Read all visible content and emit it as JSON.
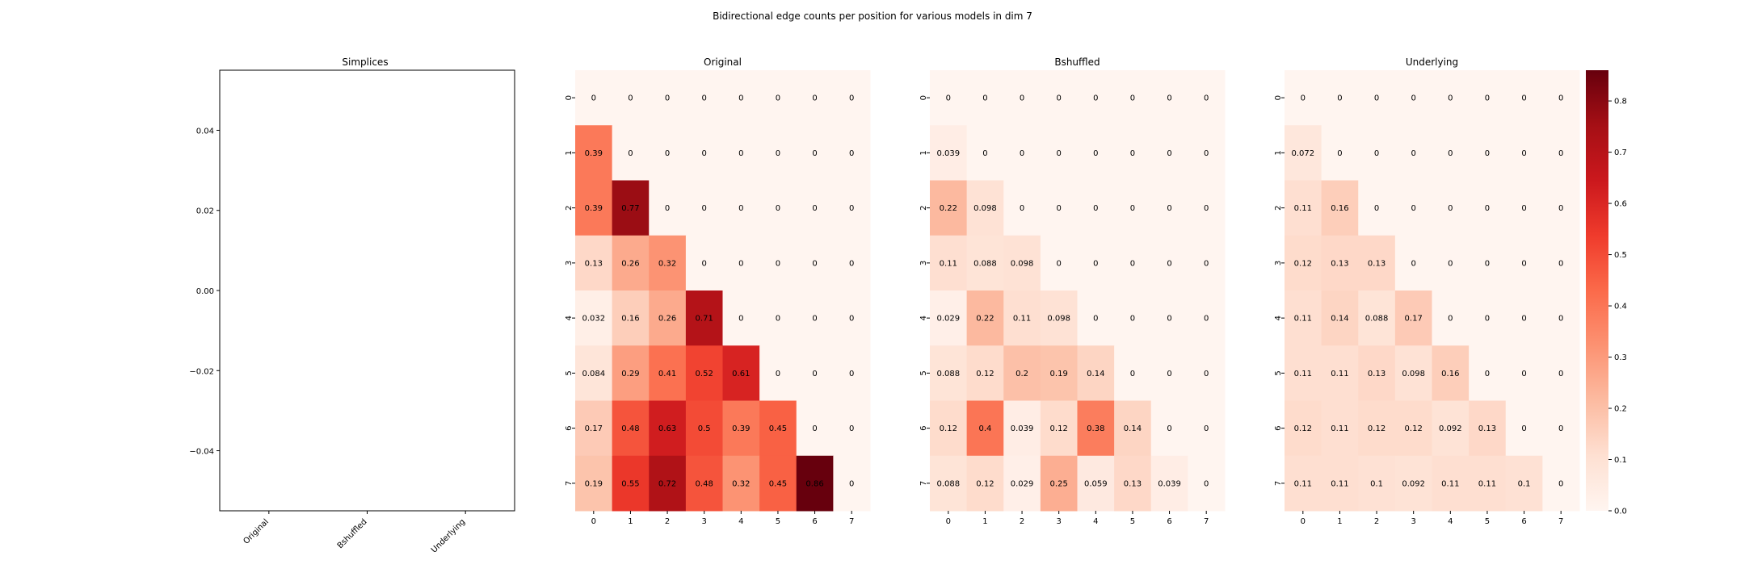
{
  "figure": {
    "suptitle": "Bidirectional edge counts per position for various models in dim 7"
  },
  "colors": {
    "cmap": [
      "#fff5f0",
      "#fee0d2",
      "#fcbba1",
      "#fc9272",
      "#fb6a4a",
      "#ef3b2c",
      "#cb181d",
      "#a50f15",
      "#67000d"
    ]
  },
  "chart_data": [
    {
      "type": "bar",
      "title": "Simplices",
      "categories": [
        "Original",
        "Bshuffled",
        "Underlying"
      ],
      "values": [
        0,
        0,
        0
      ],
      "ylim": [
        -0.055,
        0.055
      ],
      "yticks": [
        "0.04",
        "0.02",
        "0.00",
        "−0.02",
        "−0.04"
      ]
    },
    {
      "type": "heatmap",
      "title": "Original",
      "x": [
        "0",
        "1",
        "2",
        "3",
        "4",
        "5",
        "6",
        "7"
      ],
      "y": [
        "0",
        "1",
        "2",
        "3",
        "4",
        "5",
        "6",
        "7"
      ],
      "values": [
        [
          0,
          0,
          0,
          0,
          0,
          0,
          0,
          0
        ],
        [
          0.39,
          0,
          0,
          0,
          0,
          0,
          0,
          0
        ],
        [
          0.39,
          0.77,
          0,
          0,
          0,
          0,
          0,
          0
        ],
        [
          0.13,
          0.26,
          0.32,
          0,
          0,
          0,
          0,
          0
        ],
        [
          0.032,
          0.16,
          0.26,
          0.71,
          0,
          0,
          0,
          0
        ],
        [
          0.084,
          0.29,
          0.41,
          0.52,
          0.61,
          0,
          0,
          0
        ],
        [
          0.17,
          0.48,
          0.63,
          0.5,
          0.39,
          0.45,
          0,
          0
        ],
        [
          0.19,
          0.55,
          0.72,
          0.48,
          0.32,
          0.45,
          0.86,
          0
        ]
      ]
    },
    {
      "type": "heatmap",
      "title": "Bshuffled",
      "x": [
        "0",
        "1",
        "2",
        "3",
        "4",
        "5",
        "6",
        "7"
      ],
      "y": [
        "0",
        "1",
        "2",
        "3",
        "4",
        "5",
        "6",
        "7"
      ],
      "values": [
        [
          0,
          0,
          0,
          0,
          0,
          0,
          0,
          0
        ],
        [
          0.039,
          0,
          0,
          0,
          0,
          0,
          0,
          0
        ],
        [
          0.22,
          0.098,
          0,
          0,
          0,
          0,
          0,
          0
        ],
        [
          0.11,
          0.088,
          0.098,
          0,
          0,
          0,
          0,
          0
        ],
        [
          0.029,
          0.22,
          0.11,
          0.098,
          0,
          0,
          0,
          0
        ],
        [
          0.088,
          0.12,
          0.2,
          0.19,
          0.14,
          0,
          0,
          0
        ],
        [
          0.12,
          0.4,
          0.039,
          0.12,
          0.38,
          0.14,
          0,
          0
        ],
        [
          0.088,
          0.12,
          0.029,
          0.25,
          0.059,
          0.13,
          0.039,
          0
        ]
      ]
    },
    {
      "type": "heatmap",
      "title": "Underlying",
      "x": [
        "0",
        "1",
        "2",
        "3",
        "4",
        "5",
        "6",
        "7"
      ],
      "y": [
        "0",
        "1",
        "2",
        "3",
        "4",
        "5",
        "6",
        "7"
      ],
      "values": [
        [
          0,
          0,
          0,
          0,
          0,
          0,
          0,
          0
        ],
        [
          0.072,
          0,
          0,
          0,
          0,
          0,
          0,
          0
        ],
        [
          0.11,
          0.16,
          0,
          0,
          0,
          0,
          0,
          0
        ],
        [
          0.12,
          0.13,
          0.13,
          0,
          0,
          0,
          0,
          0
        ],
        [
          0.11,
          0.14,
          0.088,
          0.17,
          0,
          0,
          0,
          0
        ],
        [
          0.11,
          0.11,
          0.13,
          0.098,
          0.16,
          0,
          0,
          0
        ],
        [
          0.12,
          0.11,
          0.12,
          0.12,
          0.092,
          0.13,
          0,
          0
        ],
        [
          0.11,
          0.11,
          0.1,
          0.092,
          0.11,
          0.11,
          0.1,
          0
        ]
      ]
    }
  ],
  "colorbar": {
    "min": 0,
    "max": 0.86,
    "ticks": [
      "0.0",
      "0.1",
      "0.2",
      "0.3",
      "0.4",
      "0.5",
      "0.6",
      "0.7",
      "0.8"
    ]
  }
}
